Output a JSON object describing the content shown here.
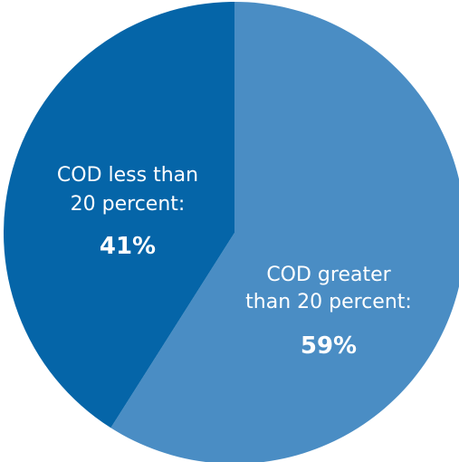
{
  "chart_data": {
    "type": "pie",
    "slices": [
      {
        "key": "greater",
        "label_lines": [
          "COD greater",
          "than 20 percent:"
        ],
        "value": 59,
        "value_label": "59%",
        "color": "#4a8dc4"
      },
      {
        "key": "less",
        "label_lines": [
          "COD less than",
          "20 percent:"
        ],
        "value": 41,
        "value_label": "41%",
        "color": "#0565a8"
      }
    ],
    "start_angle": "12 o'clock",
    "direction": "clockwise",
    "title": ""
  }
}
